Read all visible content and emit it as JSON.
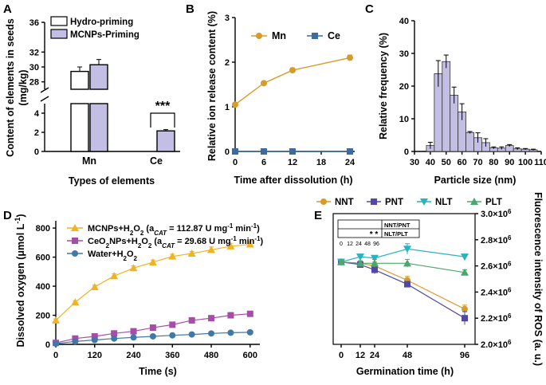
{
  "chart_data": [
    {
      "panel": "A",
      "type": "bar",
      "categories": [
        "Mn",
        "Ce"
      ],
      "series": [
        {
          "name": "Hydro-priming",
          "values": [
            29.4,
            0
          ],
          "errors": [
            0.6,
            0
          ],
          "color": "#ffffff"
        },
        {
          "name": "MCNPs-Priming",
          "values": [
            30.3,
            2.15
          ],
          "errors": [
            0.7,
            0.05
          ],
          "color": "#c3bee3"
        }
      ],
      "xlabel": "Types of elements",
      "ylabel": "Content of elements in seeds (mg/kg)",
      "yticks": [
        "0",
        "2",
        "4",
        "28",
        "30",
        "32",
        "36"
      ],
      "ylim_lower": [
        0,
        5
      ],
      "ylim_upper": [
        27,
        36
      ],
      "annotation": "***"
    },
    {
      "panel": "B",
      "type": "line",
      "x": [
        0,
        6,
        12,
        24
      ],
      "series": [
        {
          "name": "Mn",
          "values": [
            1.05,
            1.53,
            1.82,
            2.1
          ],
          "errors": [
            0.02,
            0.03,
            0.05,
            0.06
          ],
          "color": "#d69b2a"
        },
        {
          "name": "Ce",
          "values": [
            0,
            0,
            0,
            0
          ],
          "errors": [
            0,
            0,
            0,
            0
          ],
          "color": "#3d6b9e"
        }
      ],
      "xlabel": "Time after dissolution  (h)",
      "ylabel": "Relative ion release content  (%)",
      "xticks": [
        "0",
        "6",
        "12",
        "18",
        "24"
      ],
      "yticks": [
        "0",
        "1",
        "2",
        "3"
      ],
      "xlim": [
        0,
        25
      ],
      "ylim": [
        0,
        3
      ]
    },
    {
      "panel": "C",
      "type": "bar",
      "categories": [
        40,
        45,
        50,
        55,
        60,
        65,
        70,
        75,
        80,
        85,
        90,
        95,
        100,
        105
      ],
      "values": [
        1.8,
        23.8,
        27.5,
        17.2,
        12.1,
        5.8,
        4.2,
        2.7,
        1.1,
        1.0,
        1.8,
        0.8,
        0.7,
        0.5
      ],
      "errors": [
        1.0,
        4.0,
        2.0,
        2.5,
        2.5,
        0.3,
        1.5,
        1.2,
        0.3,
        0.4,
        0.3,
        0.3,
        0.2,
        0.2
      ],
      "xlabel": "Particle size (nm)",
      "ylabel": "Relative frequency (%)",
      "xticks": [
        "30",
        "40",
        "50",
        "60",
        "70",
        "80",
        "90",
        "100",
        "110"
      ],
      "yticks": [
        "0",
        "10",
        "20",
        "30",
        "40"
      ],
      "xlim": [
        30,
        110
      ],
      "ylim": [
        0,
        40
      ],
      "color": "#c3bee3"
    },
    {
      "panel": "D",
      "type": "line",
      "x": [
        0,
        60,
        120,
        180,
        240,
        300,
        360,
        420,
        480,
        540,
        600
      ],
      "series": [
        {
          "name_prefix": "MCNPs+H",
          "name_mid": "O",
          "name_open": " (a",
          "name_val": " = 112.87 U mg",
          "name_tail": " min",
          "name_close": ")",
          "values": [
            165,
            290,
            395,
            470,
            525,
            565,
            605,
            625,
            650,
            675,
            688
          ],
          "errors": [
            10,
            10,
            12,
            15,
            15,
            15,
            15,
            15,
            20,
            20,
            20
          ],
          "color": "#f0b323"
        },
        {
          "name_prefix": "CeO",
          "name_mid2": "NPs+H",
          "name_mid": "O",
          "name_open": " (a",
          "name_val": " = 29.68 U mg",
          "name_tail": " min",
          "name_close": ")",
          "values": [
            10,
            40,
            55,
            75,
            90,
            115,
            135,
            165,
            180,
            200,
            210
          ],
          "errors": [
            5,
            5,
            8,
            8,
            10,
            10,
            12,
            15,
            15,
            15,
            15
          ],
          "color": "#a64ea7"
        },
        {
          "name_prefix": "Water+H",
          "name_mid": "O",
          "values": [
            5,
            20,
            30,
            40,
            48,
            55,
            62,
            68,
            75,
            80,
            83
          ],
          "errors": [
            3,
            3,
            3,
            3,
            3,
            3,
            3,
            3,
            3,
            3,
            3
          ],
          "color": "#3f79a8"
        }
      ],
      "xlabel": "Time (s)",
      "ylabel": "Dissolved oxygen (μmol L",
      "ylabel_sup": "-1",
      "ylabel_end": ")",
      "sub_text": "2",
      "sub_cat": "CAT",
      "sup_text": "-1",
      "xticks": [
        "0",
        "120",
        "240",
        "360",
        "480",
        "600"
      ],
      "yticks": [
        "0",
        "200",
        "400",
        "600",
        "800"
      ],
      "xlim": [
        0,
        630
      ],
      "ylim": [
        0,
        850
      ]
    },
    {
      "panel": "E",
      "type": "line",
      "x": [
        0,
        12,
        24,
        48,
        96
      ],
      "series": [
        {
          "name": "NNT",
          "values": [
            2.63,
            2.62,
            2.6,
            2.49,
            2.27
          ],
          "errors": [
            0.01,
            0.02,
            0.03,
            0.03,
            0.03
          ],
          "color": "#d69b2a",
          "marker": "circle"
        },
        {
          "name": "PNT",
          "values": [
            2.63,
            2.61,
            2.57,
            2.46,
            2.2
          ],
          "errors": [
            0.01,
            0.02,
            0.03,
            0.02,
            0.05
          ],
          "color": "#5148a6",
          "marker": "square"
        },
        {
          "name": "NLT",
          "values": [
            2.63,
            2.67,
            2.66,
            2.73,
            2.67
          ],
          "errors": [
            0.01,
            0.02,
            0.02,
            0.04,
            0.02
          ],
          "color": "#29b3bf",
          "marker": "triangle-down"
        },
        {
          "name": "PLT",
          "values": [
            2.63,
            2.62,
            2.62,
            2.62,
            2.55
          ],
          "errors": [
            0.01,
            0.02,
            0.03,
            0.03,
            0.02
          ],
          "color": "#4ba86c",
          "marker": "triangle-up"
        }
      ],
      "xlabel": "Germination time (h)",
      "ylabel": "Fluorescence intensity of ROS (a. u.)",
      "xticks": [
        "0",
        "12",
        "24",
        "48",
        "96"
      ],
      "yticks_mantissa": [
        "2.0×10",
        "2.2×10",
        "2.4×10",
        "2.6×10",
        "2.8×10",
        "3.0×10"
      ],
      "ytick_exp": "6",
      "ylim": [
        2.0,
        3.0
      ],
      "inset": {
        "ticks": [
          "0",
          "12",
          "24",
          "48",
          "96"
        ],
        "row1": "NNT/PNT",
        "row2": "NLT/PLT",
        "stars": "* *"
      }
    }
  ],
  "labels": {
    "A": "A",
    "B": "B",
    "C": "C",
    "D": "D",
    "E": "E"
  }
}
